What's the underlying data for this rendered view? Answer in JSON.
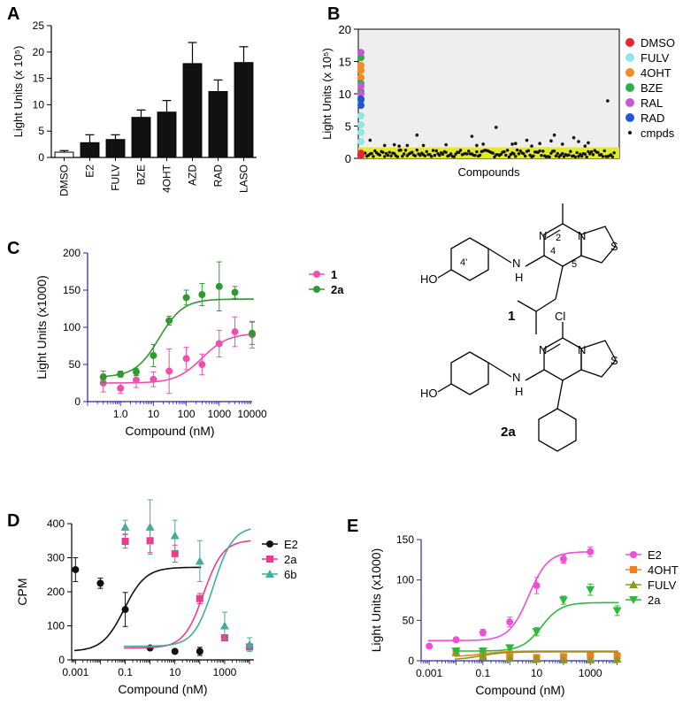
{
  "panels": {
    "A": "A",
    "B": "B",
    "C": "C",
    "D": "D",
    "E": "E"
  },
  "chart_data": [
    {
      "id": "A",
      "type": "bar",
      "title": "",
      "ylabel": "Light Units (x 10⁵)",
      "xlabel": "",
      "categories": [
        "DMSO",
        "E2",
        "FULV",
        "BZE",
        "4OHT",
        "AZD",
        "RAD",
        "LASO"
      ],
      "values": [
        1.0,
        2.8,
        3.4,
        7.6,
        8.6,
        17.8,
        12.5,
        18.0
      ],
      "errors": [
        0.3,
        1.5,
        0.9,
        1.4,
        2.2,
        4.0,
        2.2,
        3.0
      ],
      "fills": [
        "#ffffff",
        "#111111",
        "#111111",
        "#111111",
        "#111111",
        "#111111",
        "#111111",
        "#111111"
      ],
      "ylim": [
        0,
        25
      ],
      "yticks": [
        0,
        5,
        10,
        15,
        20,
        25
      ],
      "grid": false
    },
    {
      "id": "B",
      "type": "scatter",
      "title": "",
      "xlabel": "Compounds",
      "ylabel": "Light Units (x 10⁵)",
      "ylim": [
        0,
        20
      ],
      "yticks": [
        0,
        5,
        10,
        15,
        20
      ],
      "legend_position": "right",
      "threshold_band": [
        0,
        1.7
      ],
      "series": [
        {
          "name": "DMSO",
          "color": "#e8262a",
          "values": [
            0.4,
            0.6,
            0.8,
            0.5
          ]
        },
        {
          "name": "FULV",
          "color": "#8ee8e6",
          "values": [
            2.6,
            4.0,
            5.2,
            6.6
          ]
        },
        {
          "name": "4OHT",
          "color": "#f58a1f",
          "values": [
            12.5,
            13.6,
            14.4
          ]
        },
        {
          "name": "BZE",
          "color": "#2cb04a",
          "values": [
            9.0,
            10.4,
            11.6,
            15.6
          ]
        },
        {
          "name": "RAL",
          "color": "#cc55d6",
          "values": [
            10.0,
            11.2,
            16.4
          ]
        },
        {
          "name": "RAD",
          "color": "#2255d8",
          "values": [
            8.2,
            9.2
          ]
        },
        {
          "name": "cmpds",
          "color": "#111111",
          "x": [
            4,
            13,
            19,
            22,
            27,
            33,
            37,
            51,
            67,
            70,
            74,
            82,
            92,
            94,
            101,
            104,
            109,
            116,
            118,
            123,
            130,
            133,
            137,
            139,
            151
          ],
          "values": [
            2.8,
            2.0,
            2.1,
            1.9,
            2.0,
            3.6,
            2.0,
            2.1,
            3.4,
            2.0,
            2.2,
            4.8,
            2.2,
            2.3,
            2.8,
            1.9,
            2.3,
            2.7,
            3.6,
            2.2,
            3.2,
            2.6,
            1.9,
            2.4,
            8.9
          ]
        }
      ],
      "n_compounds": 156
    },
    {
      "id": "C",
      "type": "line",
      "title": "",
      "xlabel": "Compound (nM)",
      "ylabel": "Light Units (x1000)",
      "xscale": "log",
      "xticks": [
        "1.0",
        "10",
        "100",
        "1000",
        "10000"
      ],
      "xtick_values": [
        1,
        10,
        100,
        1000,
        10000
      ],
      "xlim": [
        0.1,
        10000
      ],
      "ylim": [
        0,
        200
      ],
      "yticks": [
        0,
        50,
        100,
        150,
        200
      ],
      "legend_position": "right",
      "series": [
        {
          "name": "1",
          "color": "#ee4fae",
          "x": [
            0.3,
            1,
            3,
            10,
            30,
            100,
            300,
            1000,
            3000,
            10000
          ],
          "values": [
            25,
            18,
            29,
            30,
            41,
            58,
            50,
            78,
            94,
            90
          ],
          "errors": [
            12,
            7,
            10,
            10,
            30,
            15,
            14,
            18,
            20,
            18
          ],
          "fit": {
            "bottom": 25,
            "top": 92,
            "ec50": 300,
            "hill": 1.1
          }
        },
        {
          "name": "2a",
          "color": "#2f9a2e",
          "x": [
            0.3,
            1,
            3,
            10,
            30,
            100,
            300,
            1000,
            3000,
            10000
          ],
          "values": [
            33,
            37,
            40,
            62,
            109,
            140,
            144,
            155,
            147,
            92
          ],
          "errors": [
            8,
            4,
            5,
            15,
            6,
            10,
            15,
            33,
            8,
            15
          ],
          "fit": {
            "bottom": 33,
            "top": 138,
            "ec50": 15,
            "hill": 1.2
          }
        }
      ]
    },
    {
      "id": "D",
      "type": "line",
      "title": "",
      "xlabel": "Compound (nM)",
      "ylabel": "CPM",
      "xscale": "log",
      "xticks": [
        "0.001",
        "0.1",
        "10",
        "1000"
      ],
      "xtick_values": [
        0.001,
        0.1,
        10,
        1000
      ],
      "xlim": [
        0.0007,
        15000
      ],
      "ylim": [
        0,
        400
      ],
      "yticks": [
        0,
        100,
        200,
        300,
        400
      ],
      "legend_position": "top-right",
      "series": [
        {
          "name": "E2",
          "color": "#111111",
          "marker": "circle",
          "x": [
            0.001,
            0.01,
            0.1,
            1,
            10,
            100
          ],
          "values": [
            265,
            225,
            148,
            35,
            25,
            25
          ],
          "errors": [
            35,
            15,
            50,
            5,
            5,
            12
          ],
          "fit": {
            "bottom": 25,
            "top": 272,
            "ec50": 0.09,
            "hill": 1.0
          }
        },
        {
          "name": "2a",
          "color": "#ee3a8c",
          "marker": "square",
          "x": [
            0.1,
            1,
            10,
            100,
            1000,
            10000
          ],
          "values": [
            348,
            350,
            312,
            180,
            65,
            38
          ],
          "errors": [
            20,
            35,
            25,
            15,
            8,
            8
          ],
          "fit": {
            "bottom": 35,
            "top": 352,
            "ec50": 140,
            "hill": 1.1
          }
        },
        {
          "name": "6b",
          "color": "#3fae9c",
          "marker": "triangle",
          "x": [
            0.1,
            1,
            10,
            100,
            1000,
            10000
          ],
          "values": [
            390,
            390,
            365,
            290,
            100,
            45
          ],
          "errors": [
            20,
            80,
            45,
            60,
            40,
            20
          ],
          "fit": {
            "bottom": 40,
            "top": 392,
            "ec50": 350,
            "hill": 1.1
          }
        }
      ]
    },
    {
      "id": "E",
      "type": "line",
      "title": "",
      "xlabel": "Compound (nM)",
      "ylabel": "Light Units (x1000)",
      "xscale": "log",
      "xticks": [
        "0.001",
        "0.1",
        "10",
        "1000"
      ],
      "xtick_values": [
        0.001,
        0.1,
        10,
        1000
      ],
      "xlim": [
        0.0005,
        12000
      ],
      "ylim": [
        0,
        150
      ],
      "yticks": [
        0,
        50,
        100,
        150
      ],
      "legend_position": "top-right",
      "series": [
        {
          "name": "E2",
          "color": "#ee4fd6",
          "marker": "circle",
          "x": [
            0.001,
            0.01,
            0.1,
            1,
            10,
            100,
            1000
          ],
          "values": [
            18,
            26,
            35,
            48,
            93,
            126,
            135
          ],
          "errors": [
            2,
            2,
            4,
            6,
            10,
            5,
            6
          ],
          "fit": {
            "bottom": 25,
            "top": 135,
            "ec50": 5,
            "hill": 1.2
          }
        },
        {
          "name": "4OHT",
          "color": "#f27f1d",
          "marker": "square",
          "x": [
            0.01,
            0.1,
            1,
            10,
            100,
            1000,
            10000
          ],
          "values": [
            11,
            7,
            5,
            4,
            5,
            6,
            6
          ],
          "errors": [
            2,
            2,
            2,
            2,
            2,
            2,
            2
          ],
          "fit": {
            "bottom": 5,
            "top": 12,
            "ec50": 0.1,
            "hill": 1.0
          }
        },
        {
          "name": "FULV",
          "color": "#8a9a22",
          "marker": "triangle",
          "x": [
            0.01,
            0.1,
            1,
            10,
            100,
            1000,
            10000
          ],
          "values": [
            10,
            5,
            3,
            2,
            1,
            1,
            2
          ],
          "errors": [
            2,
            2,
            1,
            1,
            1,
            1,
            1
          ],
          "fit": {
            "bottom": 1,
            "top": 11,
            "ec50": 0.08,
            "hill": 1.0
          }
        },
        {
          "name": "2a",
          "color": "#2dba3a",
          "marker": "triangle-down",
          "x": [
            0.01,
            0.1,
            1,
            10,
            100,
            1000,
            10000
          ],
          "values": [
            12,
            12,
            16,
            36,
            75,
            88,
            62
          ],
          "errors": [
            2,
            2,
            3,
            5,
            5,
            7,
            6
          ],
          "fit": {
            "bottom": 12,
            "top": 72,
            "ec50": 15,
            "hill": 1.2
          }
        }
      ]
    }
  ],
  "structures": {
    "compound1": {
      "label": "1",
      "atoms": {
        "N1": "N",
        "N2": "N",
        "NH": "N",
        "H": "H",
        "S": "S",
        "HO": "HO",
        "pos2": "2",
        "pos4": "4",
        "pos5": "5",
        "pos4p": "4'"
      }
    },
    "compound2a": {
      "label": "2a",
      "atoms": {
        "Cl": "Cl",
        "N1": "N",
        "N2": "N",
        "NH": "N",
        "H": "H",
        "S": "S",
        "HO": "HO"
      }
    }
  }
}
